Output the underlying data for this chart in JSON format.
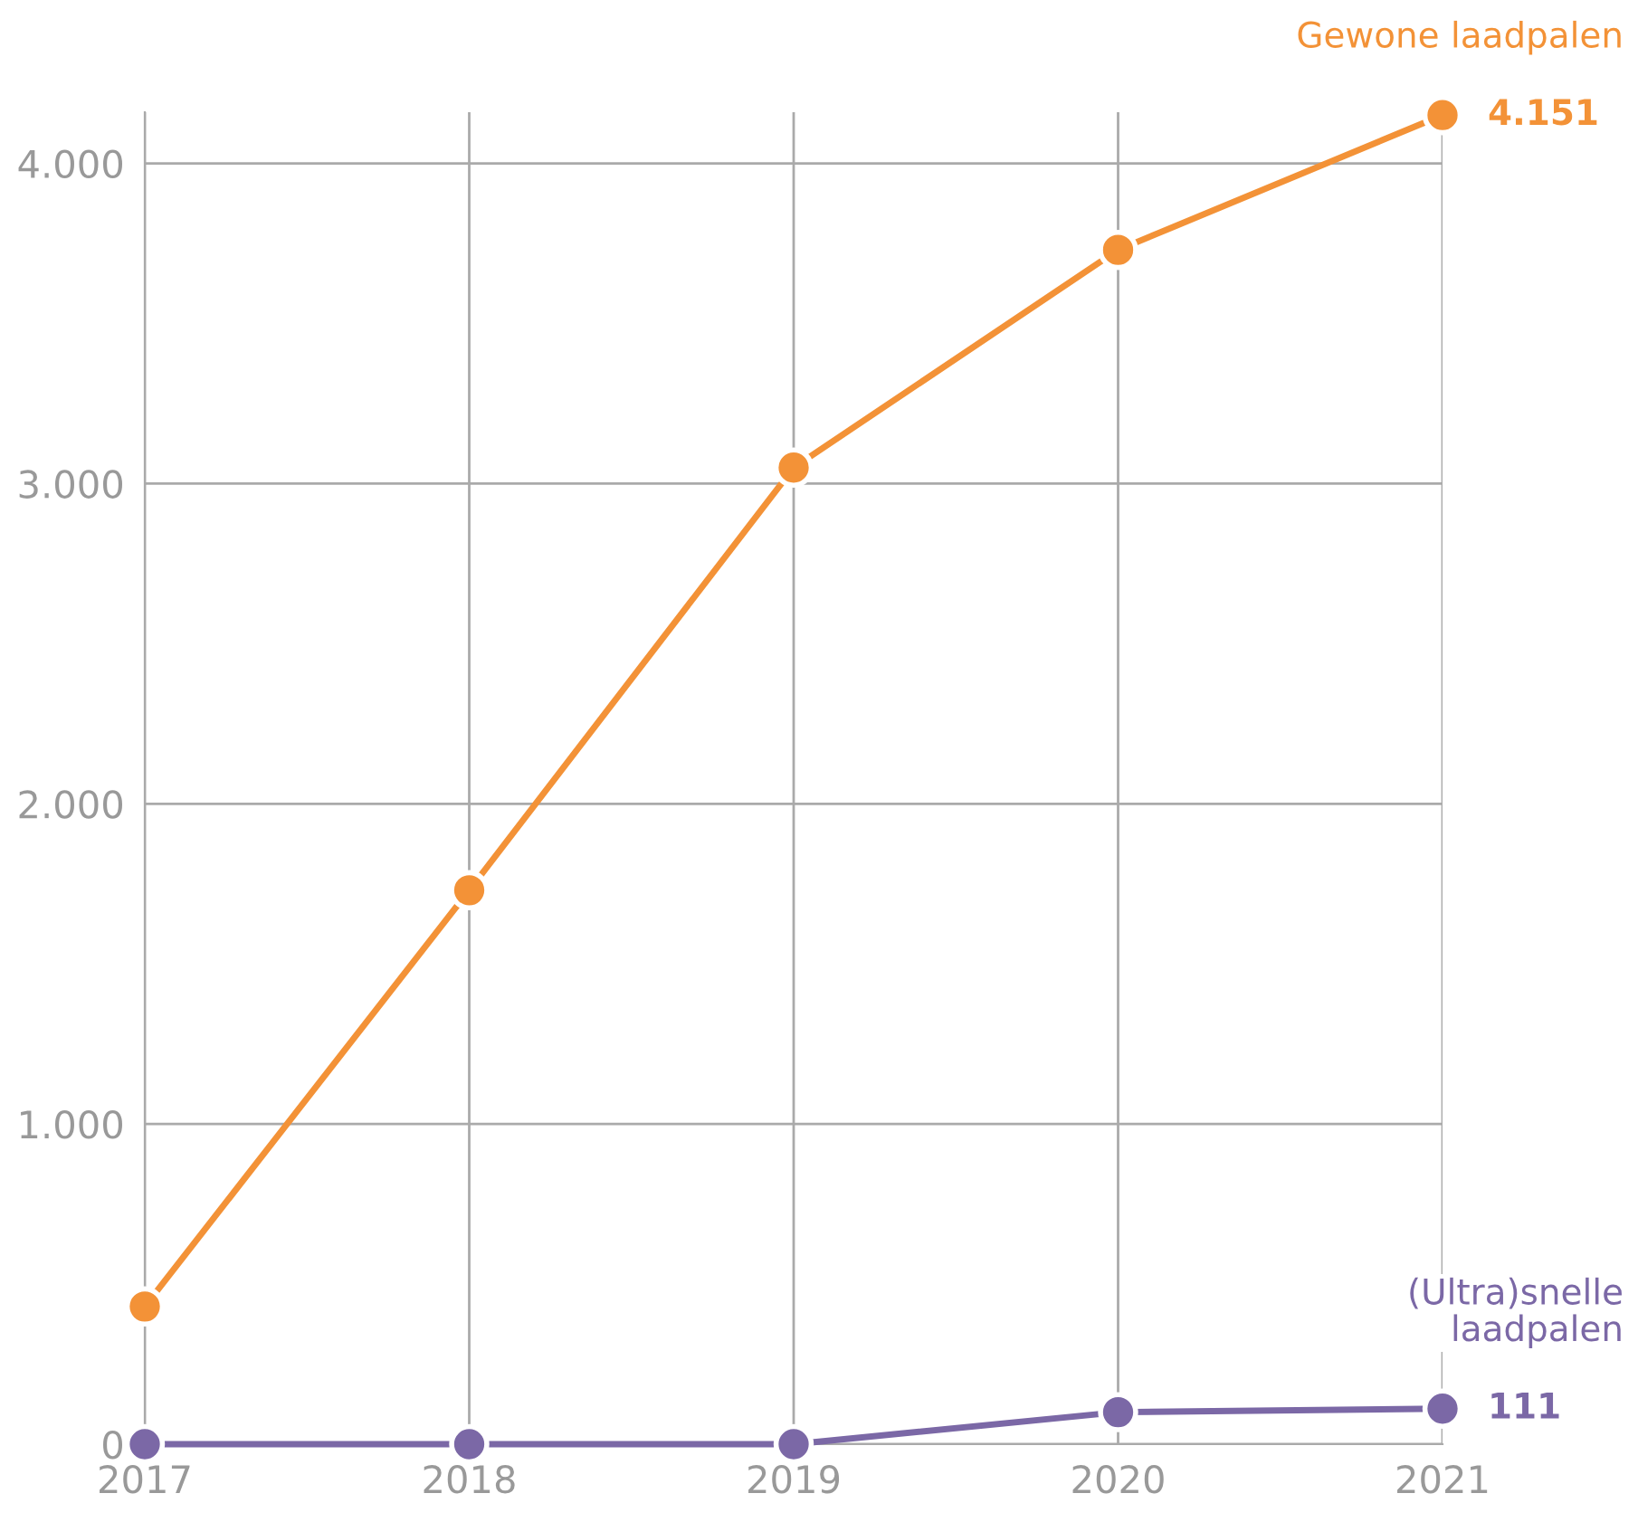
{
  "chart_data": {
    "type": "line",
    "categories": [
      "2017",
      "2018",
      "2019",
      "2020",
      "2021"
    ],
    "series": [
      {
        "name": "Gewone laadpalen",
        "color": "#f39237",
        "values": [
          430,
          1730,
          3050,
          3730,
          4151
        ],
        "value_labels": [
          null,
          null,
          null,
          null,
          "4.151"
        ]
      },
      {
        "name": "(Ultra)snelle\nlaadpalen",
        "color": "#7b68a6",
        "values": [
          0,
          0,
          0,
          100,
          111
        ],
        "value_labels": [
          null,
          null,
          null,
          null,
          "111"
        ]
      }
    ],
    "ylim": [
      0,
      4160
    ],
    "yticks": [
      {
        "value": 0,
        "label": "0"
      },
      {
        "value": 1000,
        "label": "1.000"
      },
      {
        "value": 2000,
        "label": "2.000"
      },
      {
        "value": 3000,
        "label": "3.000"
      },
      {
        "value": 4000,
        "label": "4.000"
      }
    ],
    "grid": true,
    "legend": false,
    "marker": "circle",
    "line_style": "solid"
  }
}
